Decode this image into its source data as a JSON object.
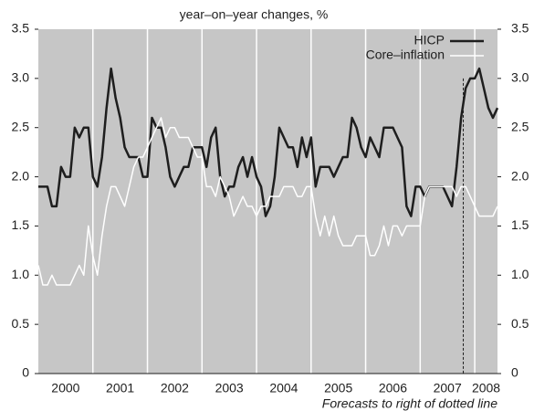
{
  "chart_data": {
    "type": "line",
    "title": "year–on–year changes, %",
    "annotation": "Forecasts to right of dotted line",
    "x": [
      2000,
      2000.083,
      2000.167,
      2000.25,
      2000.333,
      2000.417,
      2000.5,
      2000.583,
      2000.667,
      2000.75,
      2000.833,
      2000.917,
      2001,
      2001.083,
      2001.167,
      2001.25,
      2001.333,
      2001.417,
      2001.5,
      2001.583,
      2001.667,
      2001.75,
      2001.833,
      2001.917,
      2002,
      2002.083,
      2002.167,
      2002.25,
      2002.333,
      2002.417,
      2002.5,
      2002.583,
      2002.667,
      2002.75,
      2002.833,
      2002.917,
      2003,
      2003.083,
      2003.167,
      2003.25,
      2003.333,
      2003.417,
      2003.5,
      2003.583,
      2003.667,
      2003.75,
      2003.833,
      2003.917,
      2004,
      2004.083,
      2004.167,
      2004.25,
      2004.333,
      2004.417,
      2004.5,
      2004.583,
      2004.667,
      2004.75,
      2004.833,
      2004.917,
      2005,
      2005.083,
      2005.167,
      2005.25,
      2005.333,
      2005.417,
      2005.5,
      2005.583,
      2005.667,
      2005.75,
      2005.833,
      2005.917,
      2006,
      2006.083,
      2006.167,
      2006.25,
      2006.333,
      2006.417,
      2006.5,
      2006.583,
      2006.667,
      2006.75,
      2006.833,
      2006.917,
      2007,
      2007.083,
      2007.167,
      2007.25,
      2007.333,
      2007.417,
      2007.5,
      2007.583,
      2007.667,
      2007.75,
      2007.833,
      2007.917,
      2008,
      2008.083,
      2008.167,
      2008.25,
      2008.333,
      2008.417
    ],
    "series": [
      {
        "name": "HICP",
        "color": "#1e1e1e",
        "values": [
          1.9,
          1.9,
          1.9,
          1.7,
          1.7,
          2.1,
          2.0,
          2.0,
          2.5,
          2.4,
          2.5,
          2.5,
          2.0,
          1.9,
          2.2,
          2.7,
          3.1,
          2.8,
          2.6,
          2.3,
          2.2,
          2.2,
          2.2,
          2.0,
          2.0,
          2.6,
          2.5,
          2.5,
          2.3,
          2.0,
          1.9,
          2.0,
          2.1,
          2.1,
          2.3,
          2.3,
          2.3,
          2.1,
          2.4,
          2.5,
          2.0,
          1.8,
          1.9,
          1.9,
          2.1,
          2.2,
          2.0,
          2.2,
          2.0,
          1.9,
          1.6,
          1.7,
          2.0,
          2.5,
          2.4,
          2.3,
          2.3,
          2.1,
          2.4,
          2.2,
          2.4,
          1.9,
          2.1,
          2.1,
          2.1,
          2.0,
          2.1,
          2.2,
          2.2,
          2.6,
          2.5,
          2.3,
          2.2,
          2.4,
          2.3,
          2.2,
          2.5,
          2.5,
          2.5,
          2.4,
          2.3,
          1.7,
          1.6,
          1.9,
          1.9,
          1.8,
          1.9,
          1.9,
          1.9,
          1.9,
          1.8,
          1.7,
          2.1,
          2.6,
          2.9,
          3.0,
          3.0,
          3.1,
          2.9,
          2.7,
          2.6,
          2.7
        ]
      },
      {
        "name": "Core–inflation",
        "color": "#ffffff",
        "values": [
          1.1,
          0.9,
          0.9,
          1.0,
          0.9,
          0.9,
          0.9,
          0.9,
          1.0,
          1.1,
          1.0,
          1.5,
          1.2,
          1.0,
          1.4,
          1.7,
          1.9,
          1.9,
          1.8,
          1.7,
          1.9,
          2.1,
          2.2,
          2.2,
          2.3,
          2.4,
          2.5,
          2.6,
          2.4,
          2.5,
          2.5,
          2.4,
          2.4,
          2.4,
          2.3,
          2.2,
          2.2,
          1.9,
          1.9,
          1.8,
          2.0,
          1.9,
          1.8,
          1.6,
          1.7,
          1.8,
          1.7,
          1.7,
          1.6,
          1.7,
          1.7,
          1.8,
          1.8,
          1.8,
          1.9,
          1.9,
          1.9,
          1.8,
          1.8,
          1.9,
          1.9,
          1.6,
          1.4,
          1.6,
          1.4,
          1.6,
          1.4,
          1.3,
          1.3,
          1.3,
          1.4,
          1.4,
          1.4,
          1.2,
          1.2,
          1.3,
          1.5,
          1.3,
          1.5,
          1.5,
          1.4,
          1.5,
          1.5,
          1.5,
          1.5,
          1.8,
          1.9,
          1.9,
          1.9,
          1.9,
          1.9,
          1.9,
          1.8,
          1.9,
          1.9,
          1.8,
          1.7,
          1.6,
          1.6,
          1.6,
          1.6,
          1.7
        ]
      }
    ],
    "forecast_x": 2007.79,
    "xlim": [
      2000,
      2008.417
    ],
    "xticks": [
      2000,
      2001,
      2002,
      2003,
      2004,
      2005,
      2006,
      2007,
      2008
    ],
    "ylim": [
      0,
      3.5
    ],
    "yticks": [
      0,
      0.5,
      {
        "value": 1,
        "label": "1.0"
      },
      1.5,
      {
        "value": 2,
        "label": "2.0"
      },
      2.5,
      {
        "value": 3,
        "label": "3.0"
      },
      3.5
    ],
    "grid": true,
    "legend": "upper right"
  }
}
